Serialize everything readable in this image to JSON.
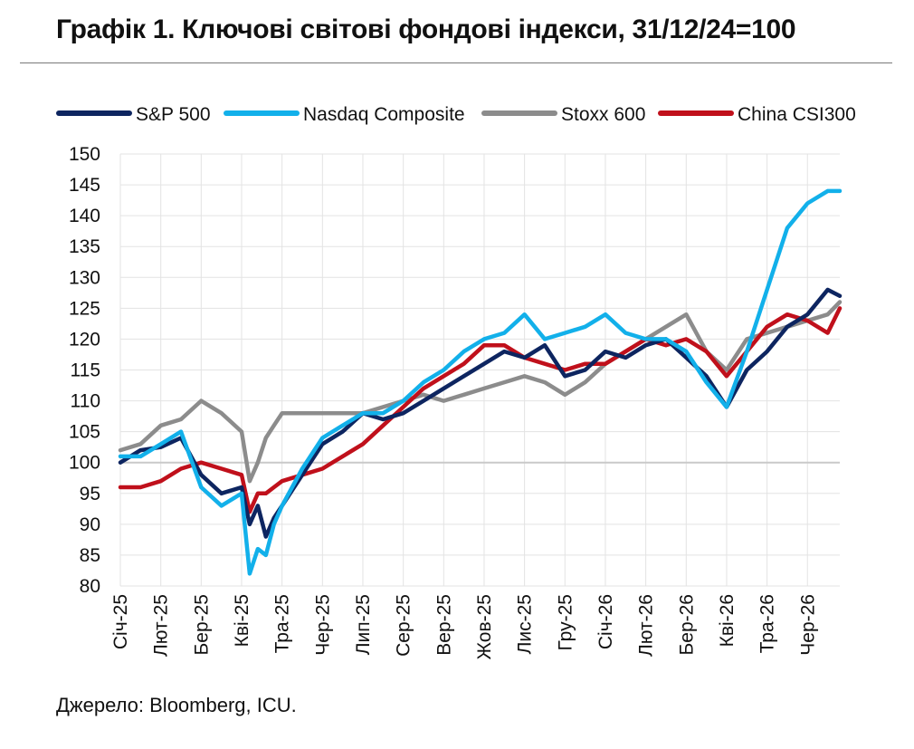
{
  "title": "Графік 1. Ключові світові фондові індекси, 31/12/24=100",
  "source": "Джерело: Bloomberg, ICU.",
  "chart_data": {
    "type": "line",
    "ylim": [
      80,
      150
    ],
    "yticks": [
      80,
      85,
      90,
      95,
      100,
      105,
      110,
      115,
      120,
      125,
      130,
      135,
      140,
      145,
      150
    ],
    "reference_line": 100,
    "x_tick_labels": [
      "Січ-25",
      "Лют-25",
      "Бер-25",
      "Кві-25",
      "Тра-25",
      "Чер-25",
      "Лип-25",
      "Сер-25",
      "Вер-25",
      "Жов-25",
      "Лис-25",
      "Гру-25",
      "Січ-26",
      "Лют-26",
      "Бер-26",
      "Кві-26",
      "Тра-26",
      "Чер-26"
    ],
    "x": [
      0,
      0.5,
      1,
      1.5,
      2,
      2.5,
      3,
      3.2,
      3.4,
      3.6,
      3.8,
      4,
      4.5,
      5,
      5.5,
      6,
      6.5,
      7,
      7.5,
      8,
      8.5,
      9,
      9.5,
      10,
      10.5,
      11,
      11.5,
      12,
      12.5,
      13,
      13.5,
      14,
      14.5,
      15,
      15.5,
      16,
      16.5,
      17,
      17.5,
      17.8
    ],
    "legend": "top",
    "series": [
      {
        "name": "S&P 500",
        "color": "#0d2560",
        "values": [
          100,
          102,
          102.5,
          104,
          98,
          95,
          96,
          90,
          93,
          88,
          91,
          93,
          98,
          103,
          105,
          108,
          107,
          108,
          110,
          112,
          114,
          116,
          118,
          117,
          119,
          114,
          115,
          118,
          117,
          119,
          120,
          117,
          114,
          109,
          115,
          118,
          122,
          124,
          128,
          127
        ]
      },
      {
        "name": "Nasdaq Composite",
        "color": "#12b0ea",
        "values": [
          101,
          101,
          103,
          105,
          96,
          93,
          95,
          82,
          86,
          85,
          90,
          93,
          99,
          104,
          106,
          108,
          108,
          110,
          113,
          115,
          118,
          120,
          121,
          124,
          120,
          121,
          122,
          124,
          121,
          120,
          120,
          118,
          113,
          109,
          118,
          128,
          138,
          142,
          144,
          144
        ]
      },
      {
        "name": "Stoxx 600",
        "color": "#8c8c8c",
        "values": [
          102,
          103,
          106,
          107,
          110,
          108,
          105,
          97,
          100,
          104,
          106,
          108,
          108,
          108,
          108,
          108,
          109,
          110,
          111,
          110,
          111,
          112,
          113,
          114,
          113,
          111,
          113,
          116,
          118,
          120,
          122,
          124,
          118,
          115,
          120,
          121,
          122,
          123,
          124,
          126
        ]
      },
      {
        "name": "China CSI300",
        "color": "#c0101b",
        "values": [
          96,
          96,
          97,
          99,
          100,
          99,
          98,
          92,
          95,
          95,
          96,
          97,
          98,
          99,
          101,
          103,
          106,
          109,
          112,
          114,
          116,
          119,
          119,
          117,
          116,
          115,
          116,
          116,
          118,
          120,
          119,
          120,
          118,
          114,
          118,
          122,
          124,
          123,
          121,
          125
        ]
      }
    ]
  }
}
